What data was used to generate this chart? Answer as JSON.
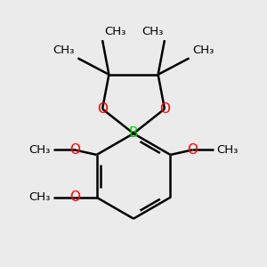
{
  "bg_color": "#ebebeb",
  "bond_color": "#000000",
  "o_color": "#ff0000",
  "b_color": "#00cc00",
  "line_width": 1.8,
  "font_size": 11,
  "small_font": 9.5,
  "xlim": [
    -1.6,
    1.6
  ],
  "ylim": [
    -1.5,
    1.7
  ]
}
